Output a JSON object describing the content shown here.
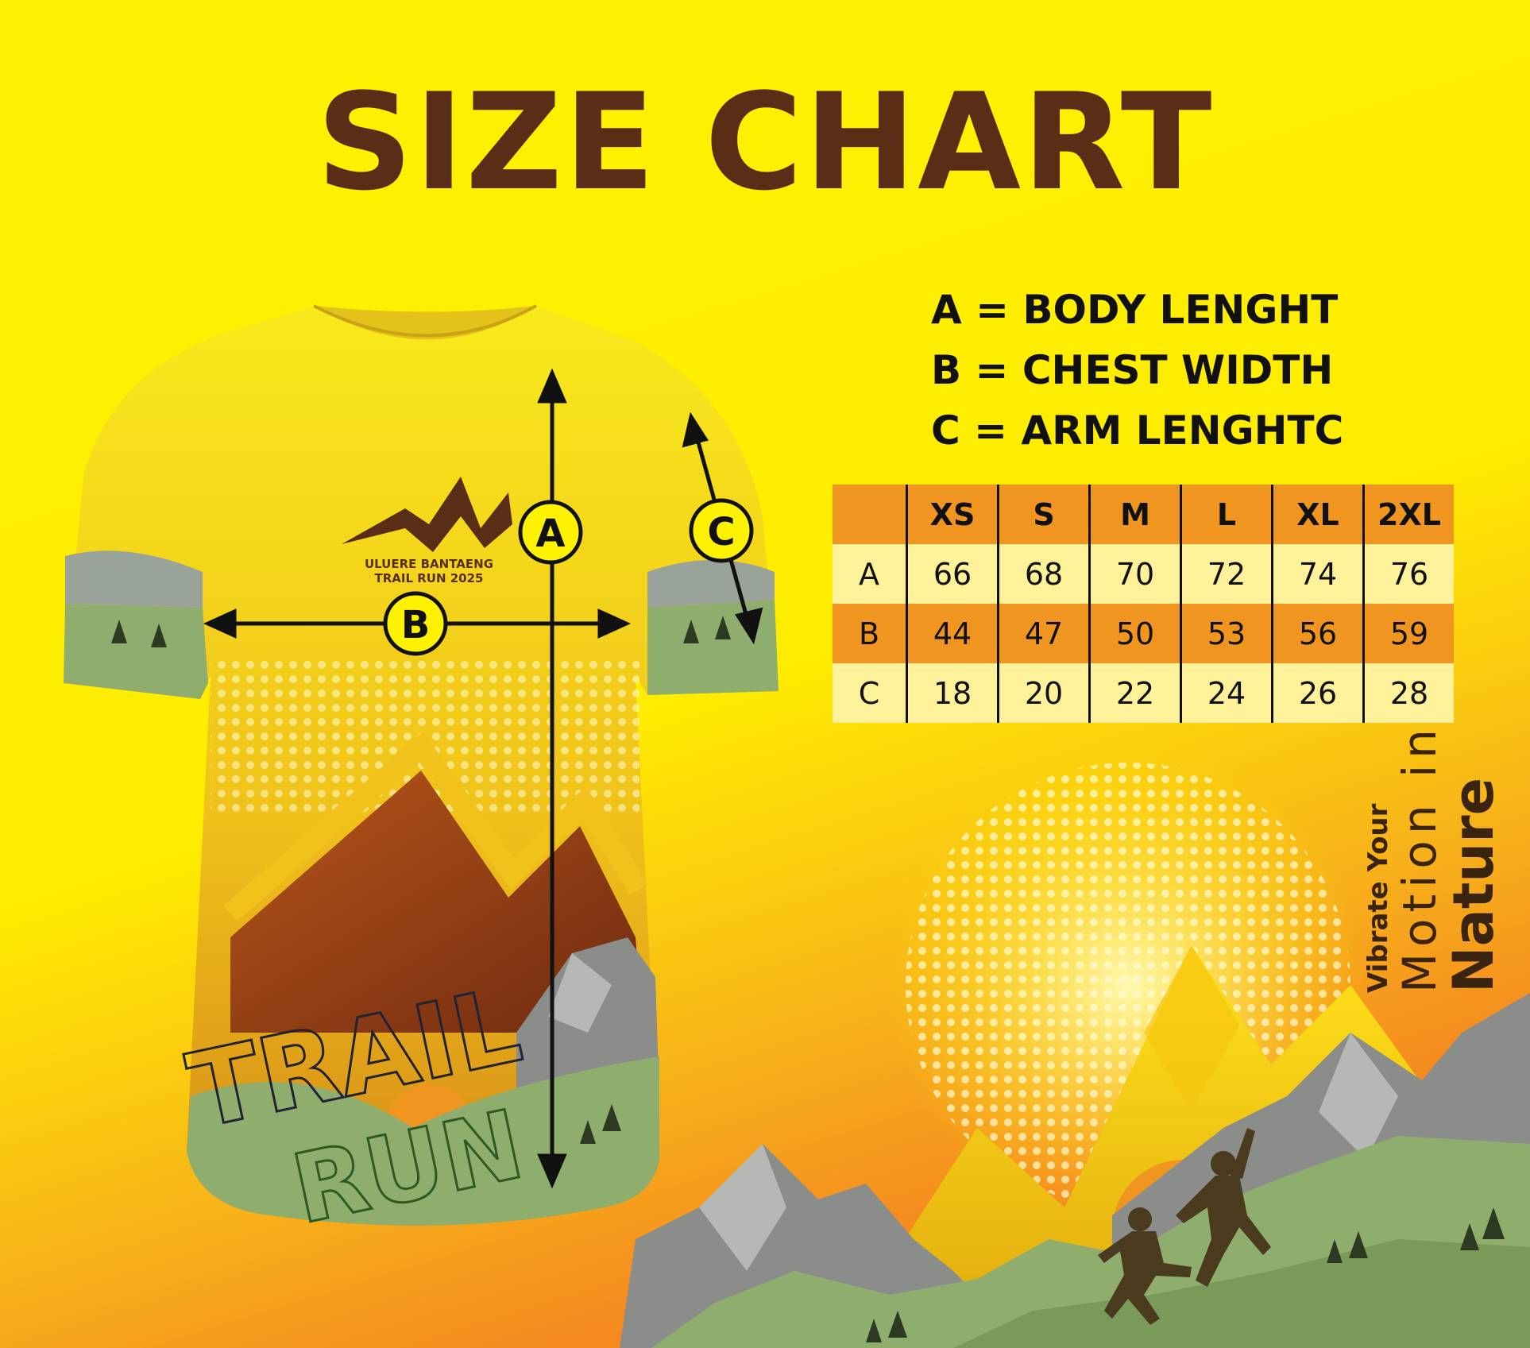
{
  "title": "SIZE CHART",
  "colors": {
    "title": "#5a2e16",
    "background_top": "#fff200",
    "accent_orange": "#f0951f",
    "table_light": "#fdf29a"
  },
  "legend": [
    "A = BODY LENGHT",
    "B = CHEST WIDTH",
    "C = ARM LENGHTC"
  ],
  "markers": {
    "a": "A",
    "b": "B",
    "c": "C"
  },
  "shirt": {
    "logo_line1": "ULUERE BANTAENG",
    "logo_line2": "TRAIL RUN 2025",
    "print_word1": "TRAIL",
    "print_word2": "RUN"
  },
  "size_table": {
    "header": [
      "",
      "XS",
      "S",
      "M",
      "L",
      "XL",
      "2XL"
    ],
    "rows": [
      [
        "A",
        "66",
        "68",
        "70",
        "72",
        "74",
        "76"
      ],
      [
        "B",
        "44",
        "47",
        "50",
        "53",
        "56",
        "59"
      ],
      [
        "C",
        "18",
        "20",
        "22",
        "24",
        "26",
        "28"
      ]
    ]
  },
  "tagline": {
    "line1": "Vibrate Your",
    "line2": "Motion in",
    "line3": "Nature"
  },
  "icons": [
    "mountain-logo-icon",
    "runner-silhouette-icon",
    "mountain-landscape-icon",
    "halftone-sun-icon"
  ]
}
